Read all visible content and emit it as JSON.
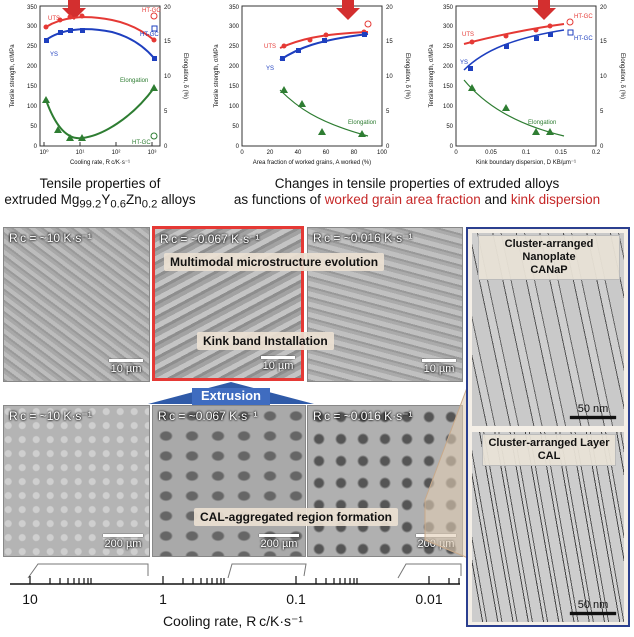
{
  "charts": [
    {
      "xlabel": "Cooling rate, R c/K·s⁻¹",
      "ylabel_left": "Tensile strength, σ/MPa",
      "ylabel_right": "Elongation, δ (%)",
      "xticks": [
        "10⁰",
        "10¹",
        "10²",
        "10³"
      ],
      "yticks_left": [
        "0",
        "50",
        "100",
        "150",
        "200",
        "250",
        "300",
        "350"
      ],
      "yticks_right": [
        "0",
        "5",
        "10",
        "15",
        "20"
      ],
      "labels": {
        "uts": "UTS",
        "ys": "YS",
        "elong": "Elongation",
        "htgc1": "HT-GC",
        "htgc2": "HT-GC",
        "htgc3": "HT-GC"
      }
    },
    {
      "xlabel": "Area fraction of worked grains, A worked (%)",
      "ylabel_left": "Tensile strength, σ/MPa",
      "ylabel_right": "Elongation, δ (%)",
      "xticks": [
        "0",
        "20",
        "40",
        "60",
        "80",
        "100"
      ],
      "yticks_left": [
        "0",
        "50",
        "100",
        "150",
        "200",
        "250",
        "300",
        "350"
      ],
      "yticks_right": [
        "0",
        "5",
        "10",
        "15",
        "20"
      ],
      "labels": {
        "uts": "UTS",
        "ys": "YS",
        "elong": "Elongation"
      }
    },
    {
      "xlabel": "Kink boundary dispersion, D KB/µm⁻¹",
      "ylabel_left": "Tensile strength, σ/MPa",
      "ylabel_right": "Elongation, δ (%)",
      "xticks": [
        "0",
        "0.05",
        "0.1",
        "0.15",
        "0.2"
      ],
      "yticks_left": [
        "0",
        "50",
        "100",
        "150",
        "200",
        "250",
        "300",
        "350"
      ],
      "yticks_right": [
        "0",
        "5",
        "10",
        "15",
        "20"
      ],
      "labels": {
        "uts": "UTS",
        "ys": "YS",
        "elong": "Elongation",
        "htgc1": "HT-GC",
        "htgc2": "HT-GC"
      }
    }
  ],
  "captions": {
    "left_l1": "Tensile properties of",
    "left_l2_pre": "extruded Mg",
    "left_sub1": "99.2",
    "left_mid1": "Y",
    "left_sub2": "0.6",
    "left_mid2": "Zn",
    "left_sub3": "0.2",
    "left_post": " alloys",
    "mid_l1": "Changes in tensile properties of extruded alloys",
    "mid_l2_pre": "as functions of ",
    "mid_l2_red1": "worked grain area fraction",
    "mid_l2_and": " and ",
    "mid_l2_red2": "kink dispersion"
  },
  "top_panels": {
    "p1_rc": "R c = ~10 K·s⁻¹",
    "p2_rc": "R c = ~0.067 K·s⁻¹",
    "p3_rc": "R c = ~0.016 K·s⁻¹",
    "scale": "10 µm",
    "multimodal": "Multimodal microstructure evolution",
    "kink": "Kink band Installation"
  },
  "extrusion": "Extrusion",
  "bottom_panels": {
    "p1_rc": "R c = ~10 K·s⁻¹",
    "p2_rc": "R c = ~0.067 K·s⁻¹",
    "p3_rc": "R c = ~0.016 K·s⁻¹",
    "scale": "200 µm",
    "cal_region": "CAL-aggregated region formation"
  },
  "tem": {
    "top_title_l1": "Cluster-arranged Nanoplate",
    "top_title_l2": "CANaP",
    "bottom_title_l1": "Cluster-arranged Layer",
    "bottom_title_l2": "CAL",
    "scale": "50 nm"
  },
  "axis": {
    "ticks": [
      "10",
      "1",
      "0.1",
      "0.01"
    ],
    "label": "Cooling rate, R c/K·s⁻¹"
  },
  "colors": {
    "uts": "#e53935",
    "ys": "#1e3fbf",
    "elong": "#2e7d32",
    "accent_red": "#c62828",
    "frame_blue": "#2b3f8f",
    "arrow_red": "#d32f2f"
  }
}
